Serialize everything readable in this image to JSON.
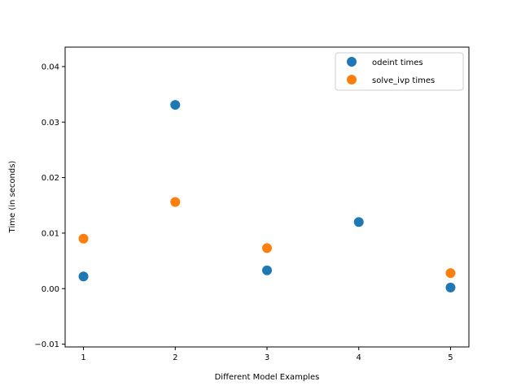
{
  "chart_data": {
    "type": "scatter",
    "xlabel": "Different Model Examples",
    "ylabel": "Time (in seconds)",
    "xlim": [
      0.8,
      5.2
    ],
    "ylim": [
      -0.0105,
      0.0435
    ],
    "xticks": [
      1,
      2,
      3,
      4,
      5
    ],
    "xtick_labels": [
      "1",
      "2",
      "3",
      "4",
      "5"
    ],
    "yticks": [
      -0.01,
      0.0,
      0.01,
      0.02,
      0.03,
      0.04
    ],
    "ytick_labels": [
      "−0.01",
      "0.00",
      "0.01",
      "0.02",
      "0.03",
      "0.04"
    ],
    "grid": false,
    "legend_position": "top-right",
    "series": [
      {
        "name": "odeint times",
        "color": "#1f77b4",
        "x": [
          1,
          2,
          3,
          4,
          5
        ],
        "y": [
          0.0022,
          0.0331,
          0.0033,
          0.012,
          0.0002
        ]
      },
      {
        "name": "solve_ivp times",
        "color": "#ff7f0e",
        "x": [
          1,
          2,
          3,
          5
        ],
        "y": [
          0.009,
          0.0156,
          0.0073,
          0.0028
        ]
      }
    ]
  }
}
